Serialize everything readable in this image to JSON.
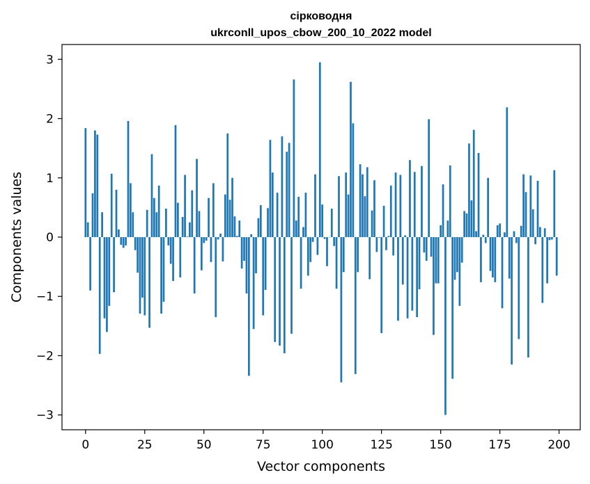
{
  "chart_data": {
    "type": "bar",
    "title": "сірководня",
    "subtitle": "ukrconll_upos_cbow_200_10_2022 model",
    "xlabel": "Vector components",
    "ylabel": "Components values",
    "xlim": [
      -9.95,
      208.95
    ],
    "ylim": [
      -3.25,
      3.25
    ],
    "xticks": [
      0,
      25,
      50,
      75,
      100,
      125,
      150,
      175,
      200
    ],
    "yticks": [
      -3,
      -2,
      -1,
      0,
      1,
      2,
      3
    ],
    "ytick_labels": [
      "−3",
      "−2",
      "−1",
      "0",
      "1",
      "2",
      "3"
    ],
    "bar_color": "#1f77b4",
    "grid": false,
    "x": [
      0,
      1,
      2,
      3,
      4,
      5,
      6,
      7,
      8,
      9,
      10,
      11,
      12,
      13,
      14,
      15,
      16,
      17,
      18,
      19,
      20,
      21,
      22,
      23,
      24,
      25,
      26,
      27,
      28,
      29,
      30,
      31,
      32,
      33,
      34,
      35,
      36,
      37,
      38,
      39,
      40,
      41,
      42,
      43,
      44,
      45,
      46,
      47,
      48,
      49,
      50,
      51,
      52,
      53,
      54,
      55,
      56,
      57,
      58,
      59,
      60,
      61,
      62,
      63,
      64,
      65,
      66,
      67,
      68,
      69,
      70,
      71,
      72,
      73,
      74,
      75,
      76,
      77,
      78,
      79,
      80,
      81,
      82,
      83,
      84,
      85,
      86,
      87,
      88,
      89,
      90,
      91,
      92,
      93,
      94,
      95,
      96,
      97,
      98,
      99,
      100,
      101,
      102,
      103,
      104,
      105,
      106,
      107,
      108,
      109,
      110,
      111,
      112,
      113,
      114,
      115,
      116,
      117,
      118,
      119,
      120,
      121,
      122,
      123,
      124,
      125,
      126,
      127,
      128,
      129,
      130,
      131,
      132,
      133,
      134,
      135,
      136,
      137,
      138,
      139,
      140,
      141,
      142,
      143,
      144,
      145,
      146,
      147,
      148,
      149,
      150,
      151,
      152,
      153,
      154,
      155,
      156,
      157,
      158,
      159,
      160,
      161,
      162,
      163,
      164,
      165,
      166,
      167,
      168,
      169,
      170,
      171,
      172,
      173,
      174,
      175,
      176,
      177,
      178,
      179,
      180,
      181,
      182,
      183,
      184,
      185,
      186,
      187,
      188,
      189,
      190,
      191,
      192,
      193,
      194,
      195,
      196,
      197,
      198,
      199
    ],
    "values": [
      1.84,
      0.25,
      -0.9,
      0.74,
      1.8,
      1.73,
      -1.97,
      0.42,
      -1.37,
      -1.6,
      -1.16,
      1.07,
      -0.93,
      0.8,
      0.13,
      -0.13,
      -0.18,
      -0.14,
      1.96,
      0.91,
      0.42,
      -0.22,
      -0.6,
      -1.29,
      -1.02,
      -1.32,
      0.46,
      -1.53,
      1.4,
      0.66,
      0.42,
      0.87,
      -1.29,
      -1.09,
      0.48,
      -0.14,
      -0.45,
      -0.74,
      1.89,
      0.58,
      -0.68,
      0.34,
      1.05,
      0.01,
      0.25,
      0.79,
      -0.95,
      1.32,
      0.44,
      -0.56,
      -0.1,
      -0.06,
      0.66,
      -0.42,
      0.91,
      -1.35,
      -0.04,
      0.06,
      -0.41,
      0.72,
      1.75,
      0.63,
      1.0,
      0.35,
      0.02,
      0.28,
      -0.53,
      -0.4,
      -0.95,
      -2.34,
      0.05,
      -1.55,
      -0.61,
      0.32,
      0.54,
      -1.32,
      -0.89,
      0.49,
      1.64,
      1.09,
      -1.77,
      0.75,
      -1.83,
      1.7,
      -1.96,
      1.44,
      1.59,
      -1.63,
      2.66,
      0.28,
      0.68,
      -0.87,
      0.17,
      0.75,
      -0.65,
      -0.42,
      -0.08,
      1.06,
      -0.3,
      2.95,
      0.55,
      -0.03,
      -0.49,
      0.0,
      0.48,
      -0.15,
      -0.87,
      1.03,
      -2.45,
      -0.59,
      1.09,
      0.72,
      2.62,
      1.92,
      -2.31,
      -0.59,
      1.23,
      1.06,
      0.69,
      1.18,
      -0.71,
      0.45,
      0.96,
      -0.25,
      -0.01,
      -1.62,
      0.53,
      -0.22,
      0.02,
      0.87,
      -0.31,
      1.09,
      -1.41,
      1.05,
      -0.8,
      0.03,
      -1.37,
      1.3,
      -1.24,
      1.1,
      -1.35,
      -0.88,
      1.2,
      -0.26,
      -0.4,
      1.99,
      -0.33,
      -1.65,
      -0.78,
      -0.78,
      0.2,
      0.89,
      -3.0,
      0.28,
      1.21,
      -2.39,
      -0.72,
      -0.59,
      -1.16,
      -0.43,
      0.44,
      0.4,
      1.58,
      0.62,
      1.81,
      0.1,
      1.42,
      -0.76,
      0.04,
      -0.1,
      1.0,
      -0.57,
      -0.68,
      -0.76,
      0.2,
      0.23,
      -1.2,
      0.08,
      2.19,
      -0.7,
      -2.15,
      0.1,
      -0.1,
      -1.72,
      0.19,
      1.06,
      0.76,
      -2.03,
      1.04,
      0.47,
      -0.12,
      0.95,
      0.17,
      -1.11,
      0.15,
      -0.78,
      -0.05,
      -0.04,
      1.13,
      -0.65
    ]
  }
}
